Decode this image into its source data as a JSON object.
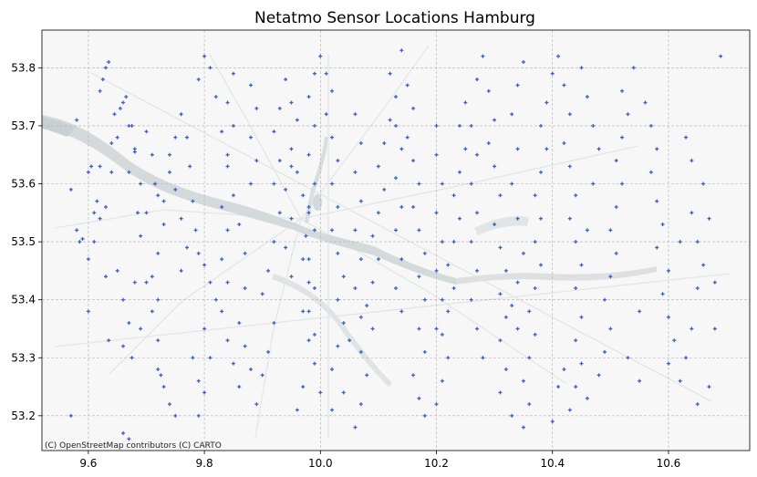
{
  "title": "Netatmo Sensor Locations Hamburg",
  "attribution": "(C) OpenStreetMap contributors (C) CARTO",
  "colors": {
    "marker": "#3a5fcd",
    "map_bg": "#f6f7f6",
    "water": "#d5dadc",
    "roads": "#e6e8e8",
    "grid": "#b0b0b0"
  },
  "chart_data": {
    "type": "scatter",
    "title": "Netatmo Sensor Locations Hamburg",
    "xlabel": "",
    "ylabel": "",
    "xlim": [
      9.52,
      10.74
    ],
    "ylim": [
      53.14,
      53.865
    ],
    "xticks": [
      9.6,
      9.8,
      10.0,
      10.2,
      10.4,
      10.6
    ],
    "yticks": [
      53.2,
      53.3,
      53.4,
      53.5,
      53.6,
      53.7,
      53.8
    ],
    "xtick_labels": [
      "9.6",
      "9.8",
      "10.0",
      "10.2",
      "10.4",
      "10.6"
    ],
    "ytick_labels": [
      "53.2",
      "53.3",
      "53.4",
      "53.5",
      "53.6",
      "53.7",
      "53.8"
    ],
    "grid": true,
    "marker": "plus",
    "basemap": "OpenStreetMap / CARTO light",
    "points": [
      [
        9.58,
        53.71
      ],
      [
        9.57,
        53.59
      ],
      [
        9.58,
        53.52
      ],
      [
        9.585,
        53.5
      ],
      [
        9.59,
        53.505
      ],
      [
        9.6,
        53.47
      ],
      [
        9.6,
        53.38
      ],
      [
        9.57,
        53.2
      ],
      [
        9.61,
        53.55
      ],
      [
        9.605,
        53.63
      ],
      [
        9.62,
        53.63
      ],
      [
        9.615,
        53.57
      ],
      [
        9.62,
        53.54
      ],
      [
        9.63,
        53.44
      ],
      [
        9.635,
        53.33
      ],
      [
        9.66,
        53.32
      ],
      [
        9.64,
        53.67
      ],
      [
        9.625,
        53.78
      ],
      [
        9.635,
        53.81
      ],
      [
        9.645,
        53.72
      ],
      [
        9.655,
        53.73
      ],
      [
        9.665,
        53.75
      ],
      [
        9.675,
        53.7
      ],
      [
        9.68,
        53.655
      ],
      [
        9.67,
        53.62
      ],
      [
        9.685,
        53.55
      ],
      [
        9.69,
        53.51
      ],
      [
        9.68,
        53.43
      ],
      [
        9.675,
        53.3
      ],
      [
        9.69,
        53.35
      ],
      [
        9.7,
        53.43
      ],
      [
        9.71,
        53.38
      ],
      [
        9.72,
        53.4
      ],
      [
        9.72,
        53.33
      ],
      [
        9.725,
        53.27
      ],
      [
        9.73,
        53.25
      ],
      [
        9.74,
        53.22
      ],
      [
        9.75,
        53.2
      ],
      [
        9.66,
        53.17
      ],
      [
        9.67,
        53.16
      ],
      [
        9.7,
        53.69
      ],
      [
        9.71,
        53.65
      ],
      [
        9.715,
        53.6
      ],
      [
        9.72,
        53.58
      ],
      [
        9.73,
        53.57
      ],
      [
        9.74,
        53.65
      ],
      [
        9.75,
        53.68
      ],
      [
        9.76,
        53.72
      ],
      [
        9.77,
        53.68
      ],
      [
        9.775,
        53.63
      ],
      [
        9.78,
        53.57
      ],
      [
        9.785,
        53.52
      ],
      [
        9.79,
        53.48
      ],
      [
        9.8,
        53.46
      ],
      [
        9.81,
        53.43
      ],
      [
        9.82,
        53.4
      ],
      [
        9.8,
        53.35
      ],
      [
        9.81,
        53.3
      ],
      [
        9.8,
        53.24
      ],
      [
        9.79,
        53.2
      ],
      [
        9.79,
        53.78
      ],
      [
        9.8,
        53.82
      ],
      [
        9.81,
        53.8
      ],
      [
        9.82,
        53.75
      ],
      [
        9.83,
        53.69
      ],
      [
        9.84,
        53.63
      ],
      [
        9.85,
        53.58
      ],
      [
        9.86,
        53.53
      ],
      [
        9.87,
        53.48
      ],
      [
        9.87,
        53.42
      ],
      [
        9.86,
        53.36
      ],
      [
        9.87,
        53.32
      ],
      [
        9.88,
        53.28
      ],
      [
        9.86,
        53.25
      ],
      [
        9.89,
        53.22
      ],
      [
        9.9,
        53.27
      ],
      [
        9.91,
        53.31
      ],
      [
        9.92,
        53.36
      ],
      [
        9.9,
        53.41
      ],
      [
        9.91,
        53.45
      ],
      [
        9.92,
        53.5
      ],
      [
        9.93,
        53.55
      ],
      [
        9.92,
        53.6
      ],
      [
        9.93,
        53.64
      ],
      [
        9.92,
        53.69
      ],
      [
        9.93,
        53.73
      ],
      [
        9.94,
        53.78
      ],
      [
        9.95,
        53.74
      ],
      [
        9.96,
        53.71
      ],
      [
        9.95,
        53.66
      ],
      [
        9.96,
        53.62
      ],
      [
        9.97,
        53.58
      ],
      [
        9.98,
        53.55
      ],
      [
        9.975,
        53.51
      ],
      [
        9.97,
        53.47
      ],
      [
        9.98,
        53.43
      ],
      [
        9.97,
        53.38
      ],
      [
        9.98,
        53.33
      ],
      [
        9.99,
        53.29
      ],
      [
        10.0,
        53.24
      ],
      [
        10.0,
        53.82
      ],
      [
        10.01,
        53.79
      ],
      [
        10.02,
        53.76
      ],
      [
        10.01,
        53.72
      ],
      [
        10.02,
        53.68
      ],
      [
        10.03,
        53.64
      ],
      [
        10.02,
        53.6
      ],
      [
        10.03,
        53.56
      ],
      [
        10.02,
        53.52
      ],
      [
        10.03,
        53.48
      ],
      [
        10.04,
        53.44
      ],
      [
        10.03,
        53.4
      ],
      [
        10.04,
        53.36
      ],
      [
        10.03,
        53.32
      ],
      [
        10.02,
        53.28
      ],
      [
        10.04,
        53.24
      ],
      [
        10.02,
        53.21
      ],
      [
        10.06,
        53.18
      ],
      [
        10.07,
        53.22
      ],
      [
        10.08,
        53.27
      ],
      [
        10.07,
        53.31
      ],
      [
        10.09,
        53.35
      ],
      [
        10.08,
        53.39
      ],
      [
        10.09,
        53.43
      ],
      [
        10.1,
        53.47
      ],
      [
        10.09,
        53.51
      ],
      [
        10.1,
        53.55
      ],
      [
        10.11,
        53.59
      ],
      [
        10.1,
        53.63
      ],
      [
        10.11,
        53.67
      ],
      [
        10.12,
        53.71
      ],
      [
        10.13,
        53.75
      ],
      [
        10.12,
        53.79
      ],
      [
        10.14,
        53.83
      ],
      [
        10.15,
        53.77
      ],
      [
        10.16,
        53.73
      ],
      [
        10.15,
        53.68
      ],
      [
        10.16,
        53.64
      ],
      [
        10.17,
        53.6
      ],
      [
        10.16,
        53.56
      ],
      [
        10.17,
        53.52
      ],
      [
        10.18,
        53.48
      ],
      [
        10.17,
        53.44
      ],
      [
        10.18,
        53.4
      ],
      [
        10.17,
        53.35
      ],
      [
        10.18,
        53.31
      ],
      [
        10.16,
        53.27
      ],
      [
        10.17,
        53.23
      ],
      [
        10.18,
        53.2
      ],
      [
        10.2,
        53.22
      ],
      [
        10.21,
        53.26
      ],
      [
        10.22,
        53.3
      ],
      [
        10.21,
        53.34
      ],
      [
        10.22,
        53.38
      ],
      [
        10.23,
        53.42
      ],
      [
        10.22,
        53.46
      ],
      [
        10.23,
        53.5
      ],
      [
        10.24,
        53.54
      ],
      [
        10.23,
        53.58
      ],
      [
        10.24,
        53.62
      ],
      [
        10.25,
        53.66
      ],
      [
        10.24,
        53.7
      ],
      [
        10.25,
        53.74
      ],
      [
        10.27,
        53.78
      ],
      [
        10.28,
        53.82
      ],
      [
        10.29,
        53.76
      ],
      [
        10.3,
        53.71
      ],
      [
        10.29,
        53.67
      ],
      [
        10.3,
        53.63
      ],
      [
        10.31,
        53.58
      ],
      [
        10.3,
        53.53
      ],
      [
        10.31,
        53.49
      ],
      [
        10.32,
        53.45
      ],
      [
        10.31,
        53.41
      ],
      [
        10.32,
        53.37
      ],
      [
        10.31,
        53.33
      ],
      [
        10.32,
        53.28
      ],
      [
        10.31,
        53.24
      ],
      [
        10.33,
        53.2
      ],
      [
        10.35,
        53.18
      ],
      [
        10.36,
        53.22
      ],
      [
        10.35,
        53.26
      ],
      [
        10.36,
        53.3
      ],
      [
        10.37,
        53.34
      ],
      [
        10.36,
        53.38
      ],
      [
        10.37,
        53.42
      ],
      [
        10.38,
        53.46
      ],
      [
        10.37,
        53.5
      ],
      [
        10.38,
        53.54
      ],
      [
        10.37,
        53.58
      ],
      [
        10.38,
        53.62
      ],
      [
        10.39,
        53.66
      ],
      [
        10.38,
        53.7
      ],
      [
        10.39,
        53.74
      ],
      [
        10.4,
        53.79
      ],
      [
        10.41,
        53.82
      ],
      [
        10.42,
        53.77
      ],
      [
        10.43,
        53.72
      ],
      [
        10.42,
        53.67
      ],
      [
        10.43,
        53.63
      ],
      [
        10.44,
        53.58
      ],
      [
        10.43,
        53.54
      ],
      [
        10.44,
        53.5
      ],
      [
        10.45,
        53.46
      ],
      [
        10.44,
        53.42
      ],
      [
        10.45,
        53.37
      ],
      [
        10.44,
        53.33
      ],
      [
        10.45,
        53.29
      ],
      [
        10.44,
        53.25
      ],
      [
        10.43,
        53.21
      ],
      [
        10.4,
        53.19
      ],
      [
        10.41,
        53.25
      ],
      [
        10.42,
        53.28
      ],
      [
        10.46,
        53.23
      ],
      [
        10.48,
        53.27
      ],
      [
        10.49,
        53.31
      ],
      [
        10.5,
        53.35
      ],
      [
        10.49,
        53.4
      ],
      [
        10.5,
        53.44
      ],
      [
        10.51,
        53.48
      ],
      [
        10.5,
        53.52
      ],
      [
        10.51,
        53.56
      ],
      [
        10.52,
        53.6
      ],
      [
        10.51,
        53.64
      ],
      [
        10.52,
        53.68
      ],
      [
        10.53,
        53.72
      ],
      [
        10.52,
        53.76
      ],
      [
        10.54,
        53.8
      ],
      [
        10.56,
        53.74
      ],
      [
        10.57,
        53.7
      ],
      [
        10.58,
        53.66
      ],
      [
        10.57,
        53.62
      ],
      [
        10.58,
        53.57
      ],
      [
        10.59,
        53.53
      ],
      [
        10.58,
        53.49
      ],
      [
        10.6,
        53.45
      ],
      [
        10.59,
        53.41
      ],
      [
        10.6,
        53.37
      ],
      [
        10.61,
        53.33
      ],
      [
        10.6,
        53.29
      ],
      [
        10.62,
        53.26
      ],
      [
        10.63,
        53.3
      ],
      [
        10.64,
        53.35
      ],
      [
        10.65,
        53.42
      ],
      [
        10.66,
        53.46
      ],
      [
        10.65,
        53.5
      ],
      [
        10.64,
        53.55
      ],
      [
        10.66,
        53.6
      ],
      [
        10.67,
        53.54
      ],
      [
        10.68,
        53.43
      ],
      [
        10.68,
        53.35
      ],
      [
        10.69,
        53.82
      ],
      [
        10.64,
        53.64
      ],
      [
        10.63,
        53.68
      ],
      [
        10.62,
        53.5
      ],
      [
        10.67,
        53.25
      ],
      [
        10.65,
        53.22
      ],
      [
        10.55,
        53.38
      ],
      [
        10.53,
        53.3
      ],
      [
        10.55,
        53.26
      ],
      [
        10.46,
        53.52
      ],
      [
        10.47,
        53.6
      ],
      [
        10.48,
        53.66
      ],
      [
        10.47,
        53.7
      ],
      [
        10.46,
        53.75
      ],
      [
        10.45,
        53.8
      ],
      [
        10.35,
        53.81
      ],
      [
        10.34,
        53.77
      ],
      [
        10.33,
        53.72
      ],
      [
        10.34,
        53.66
      ],
      [
        10.33,
        53.6
      ],
      [
        10.34,
        53.54
      ],
      [
        10.35,
        53.48
      ],
      [
        10.34,
        53.43
      ],
      [
        10.33,
        53.39
      ],
      [
        10.34,
        53.35
      ],
      [
        10.28,
        53.3
      ],
      [
        10.27,
        53.35
      ],
      [
        10.26,
        53.4
      ],
      [
        10.27,
        53.45
      ],
      [
        10.26,
        53.5
      ],
      [
        10.27,
        53.55
      ],
      [
        10.26,
        53.6
      ],
      [
        10.27,
        53.65
      ],
      [
        10.26,
        53.7
      ],
      [
        10.2,
        53.7
      ],
      [
        10.2,
        53.65
      ],
      [
        10.21,
        53.6
      ],
      [
        10.2,
        53.55
      ],
      [
        10.21,
        53.5
      ],
      [
        10.2,
        53.45
      ],
      [
        10.21,
        53.4
      ],
      [
        10.2,
        53.35
      ],
      [
        10.14,
        53.38
      ],
      [
        10.13,
        53.42
      ],
      [
        10.14,
        53.47
      ],
      [
        10.13,
        53.52
      ],
      [
        10.14,
        53.56
      ],
      [
        10.13,
        53.61
      ],
      [
        10.14,
        53.66
      ],
      [
        10.13,
        53.7
      ],
      [
        10.06,
        53.72
      ],
      [
        10.07,
        53.67
      ],
      [
        10.06,
        53.62
      ],
      [
        10.07,
        53.57
      ],
      [
        10.06,
        53.52
      ],
      [
        10.07,
        53.47
      ],
      [
        10.06,
        53.42
      ],
      [
        10.07,
        53.37
      ],
      [
        10.05,
        53.33
      ],
      [
        9.99,
        53.79
      ],
      [
        9.98,
        53.75
      ],
      [
        9.99,
        53.7
      ],
      [
        9.98,
        53.65
      ],
      [
        9.99,
        53.6
      ],
      [
        9.98,
        53.56
      ],
      [
        9.99,
        53.52
      ],
      [
        9.98,
        53.47
      ],
      [
        9.99,
        53.42
      ],
      [
        9.98,
        53.38
      ],
      [
        9.99,
        53.34
      ],
      [
        9.97,
        53.25
      ],
      [
        9.96,
        53.21
      ],
      [
        9.95,
        53.44
      ],
      [
        9.94,
        53.49
      ],
      [
        9.95,
        53.54
      ],
      [
        9.94,
        53.59
      ],
      [
        9.95,
        53.63
      ],
      [
        9.88,
        53.6
      ],
      [
        9.89,
        53.64
      ],
      [
        9.88,
        53.68
      ],
      [
        9.89,
        53.73
      ],
      [
        9.88,
        53.77
      ],
      [
        9.85,
        53.79
      ],
      [
        9.84,
        53.74
      ],
      [
        9.85,
        53.7
      ],
      [
        9.84,
        53.65
      ],
      [
        9.83,
        53.56
      ],
      [
        9.84,
        53.52
      ],
      [
        9.83,
        53.47
      ],
      [
        9.84,
        53.43
      ],
      [
        9.83,
        53.38
      ],
      [
        9.84,
        53.33
      ],
      [
        9.85,
        53.29
      ],
      [
        9.76,
        53.45
      ],
      [
        9.77,
        53.49
      ],
      [
        9.76,
        53.54
      ],
      [
        9.75,
        53.59
      ],
      [
        9.74,
        53.62
      ],
      [
        9.73,
        53.53
      ],
      [
        9.72,
        53.48
      ],
      [
        9.71,
        53.44
      ],
      [
        9.7,
        53.55
      ],
      [
        9.69,
        53.6
      ],
      [
        9.68,
        53.66
      ],
      [
        9.67,
        53.7
      ],
      [
        9.66,
        53.74
      ],
      [
        9.65,
        53.68
      ],
      [
        9.64,
        53.62
      ],
      [
        9.63,
        53.56
      ],
      [
        9.62,
        53.76
      ],
      [
        9.63,
        53.8
      ],
      [
        9.6,
        53.62
      ],
      [
        9.61,
        53.5
      ],
      [
        9.65,
        53.45
      ],
      [
        9.66,
        53.4
      ],
      [
        9.67,
        53.36
      ],
      [
        9.78,
        53.3
      ],
      [
        9.79,
        53.26
      ],
      [
        9.72,
        53.28
      ]
    ]
  }
}
